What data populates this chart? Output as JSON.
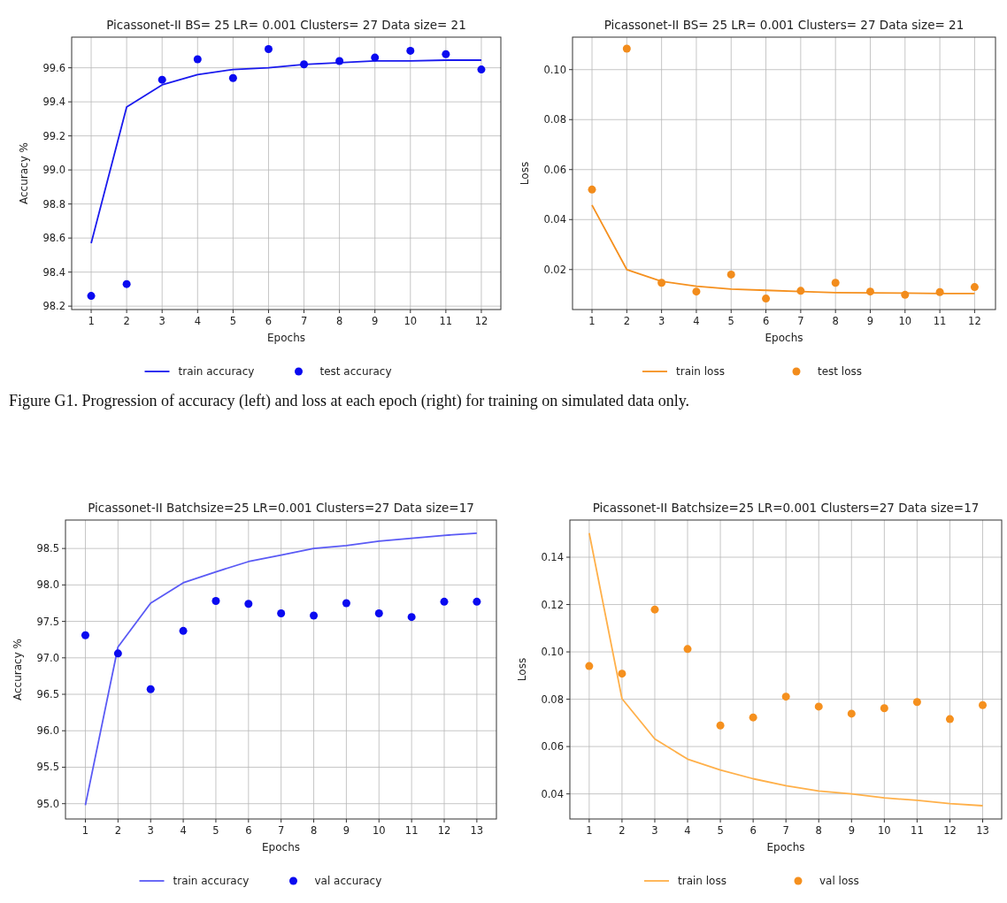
{
  "chart_data": [
    {
      "type": "line",
      "title": "Picassonet-II BS= 25 LR= 0.001 Clusters= 27 Data size= 21",
      "xlabel": "Epochs",
      "ylabel": "Accuracy %",
      "x": [
        1,
        2,
        3,
        4,
        5,
        6,
        7,
        8,
        9,
        10,
        11,
        12
      ],
      "xlim": [
        0.45,
        12.55
      ],
      "xticks": [
        1,
        2,
        3,
        4,
        5,
        6,
        7,
        8,
        9,
        10,
        11,
        12
      ],
      "ylim": [
        98.18,
        99.78
      ],
      "yticks": [
        {
          "value": 98.2,
          "label": "98.2"
        },
        {
          "value": 98.4,
          "label": "98.4"
        },
        {
          "value": 98.6,
          "label": "98.6"
        },
        {
          "value": 98.8,
          "label": "98.8"
        },
        {
          "value": 99.0,
          "label": "99.0"
        },
        {
          "value": 99.2,
          "label": "99.2"
        },
        {
          "value": 99.4,
          "label": "99.4"
        },
        {
          "value": 99.6,
          "label": "99.6"
        }
      ],
      "grid": true,
      "legend": "bottom",
      "annotations": [
        "Figure G1. Progression of accuracy (left) and loss at each epoch (right) for training on simulated data only."
      ],
      "series": [
        {
          "name": "train accuracy",
          "color": "#1a1aee",
          "marker": "none",
          "values": [
            98.57,
            99.37,
            99.5,
            99.56,
            99.59,
            99.6,
            99.62,
            99.63,
            99.64,
            99.64,
            99.645,
            99.645
          ]
        },
        {
          "name": "test accuracy",
          "type": "scatter",
          "color": "#0a0af0",
          "marker": "circle",
          "values": [
            98.26,
            98.33,
            99.53,
            99.65,
            99.54,
            99.71,
            99.62,
            99.64,
            99.66,
            99.7,
            99.68,
            99.59
          ]
        }
      ]
    },
    {
      "type": "line",
      "title": "Picassonet-II BS= 25 LR= 0.001 Clusters= 27 Data size= 21",
      "xlabel": "Epochs",
      "ylabel": "Loss",
      "x": [
        1,
        2,
        3,
        4,
        5,
        6,
        7,
        8,
        9,
        10,
        11,
        12
      ],
      "xlim": [
        0.44,
        12.6
      ],
      "xticks": [
        1,
        2,
        3,
        4,
        5,
        6,
        7,
        8,
        9,
        10,
        11,
        12
      ],
      "ylim": [
        0.004,
        0.113
      ],
      "yticks": [
        {
          "value": 0.02,
          "label": "0.02"
        },
        {
          "value": 0.04,
          "label": "0.04"
        },
        {
          "value": 0.06,
          "label": "0.06"
        },
        {
          "value": 0.08,
          "label": "0.08"
        },
        {
          "value": 0.1,
          "label": "0.10"
        }
      ],
      "grid": true,
      "legend": "bottom",
      "series": [
        {
          "name": "train loss",
          "color": "#f5901e",
          "marker": "none",
          "values": [
            0.0458,
            0.02,
            0.0153,
            0.0133,
            0.0122,
            0.0117,
            0.0112,
            0.0108,
            0.0107,
            0.0106,
            0.0104,
            0.0104
          ]
        },
        {
          "name": "test loss",
          "type": "scatter",
          "color": "#f28c1c",
          "marker": "circle",
          "values": [
            0.052,
            0.1084,
            0.0147,
            0.0112,
            0.018,
            0.0084,
            0.0115,
            0.0147,
            0.0112,
            0.0099,
            0.011,
            0.013
          ]
        }
      ]
    },
    {
      "type": "line",
      "title": "Picassonet-II Batchsize=25 LR=0.001 Clusters=27 Data size=17",
      "xlabel": "Epochs",
      "ylabel": "Accuracy %",
      "x": [
        1,
        2,
        3,
        4,
        5,
        6,
        7,
        8,
        9,
        10,
        11,
        12,
        13
      ],
      "xlim": [
        0.39,
        13.6
      ],
      "xticks": [
        1,
        2,
        3,
        4,
        5,
        6,
        7,
        8,
        9,
        10,
        11,
        12,
        13
      ],
      "ylim": [
        94.79,
        98.89
      ],
      "yticks": [
        {
          "value": 95,
          "label": "95.0"
        },
        {
          "value": 95.5,
          "label": "95.5"
        },
        {
          "value": 96,
          "label": "96.0"
        },
        {
          "value": 96.5,
          "label": "96.5"
        },
        {
          "value": 97,
          "label": "97.0"
        },
        {
          "value": 97.5,
          "label": "97.5"
        },
        {
          "value": 98,
          "label": "98.0"
        },
        {
          "value": 98.5,
          "label": "98.5"
        }
      ],
      "grid": true,
      "legend": "bottom",
      "series": [
        {
          "name": "train accuracy",
          "color": "#5a5af5",
          "marker": "none",
          "values": [
            94.98,
            97.15,
            97.75,
            98.03,
            98.18,
            98.32,
            98.41,
            98.5,
            98.54,
            98.6,
            98.64,
            98.68,
            98.71
          ]
        },
        {
          "name": "val accuracy",
          "type": "scatter",
          "color": "#0a0af0",
          "marker": "circle",
          "values": [
            97.31,
            97.06,
            96.57,
            97.37,
            97.78,
            97.74,
            97.61,
            97.58,
            97.75,
            97.61,
            97.56,
            97.77,
            97.77
          ]
        }
      ]
    },
    {
      "type": "line",
      "title": "Picassonet-II Batchsize=25 LR=0.001 Clusters=27 Data size=17",
      "xlabel": "Epochs",
      "ylabel": "Loss",
      "x": [
        1,
        2,
        3,
        4,
        5,
        6,
        7,
        8,
        9,
        10,
        11,
        12,
        13
      ],
      "xlim": [
        0.41,
        13.58
      ],
      "xticks": [
        1,
        2,
        3,
        4,
        5,
        6,
        7,
        8,
        9,
        10,
        11,
        12,
        13
      ],
      "ylim": [
        0.0294,
        0.1557
      ],
      "yticks": [
        {
          "value": 0.04,
          "label": "0.04"
        },
        {
          "value": 0.06,
          "label": "0.06"
        },
        {
          "value": 0.08,
          "label": "0.08"
        },
        {
          "value": 0.1,
          "label": "0.10"
        },
        {
          "value": 0.12,
          "label": "0.12"
        },
        {
          "value": 0.14,
          "label": "0.14"
        }
      ],
      "grid": true,
      "legend": "bottom",
      "series": [
        {
          "name": "train loss",
          "color": "#ffb04a",
          "marker": "none",
          "values": [
            0.1502,
            0.0802,
            0.0632,
            0.0547,
            0.0501,
            0.0464,
            0.0435,
            0.0412,
            0.04,
            0.0383,
            0.0373,
            0.0359,
            0.035
          ]
        },
        {
          "name": "val loss",
          "type": "scatter",
          "color": "#f5901e",
          "marker": "circle",
          "values": [
            0.094,
            0.0908,
            0.1179,
            0.1012,
            0.0689,
            0.0723,
            0.0811,
            0.0769,
            0.0739,
            0.0762,
            0.0788,
            0.0716,
            0.0775
          ]
        }
      ]
    }
  ]
}
